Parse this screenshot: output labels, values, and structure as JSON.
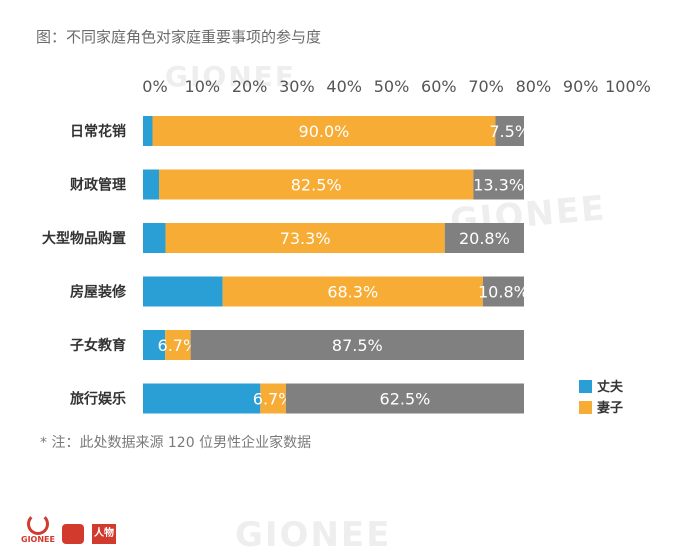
{
  "title": "图：不同家庭角色对家庭重要事项的参与度",
  "note": "* 注：此处数据来源 120 位男性企业家数据",
  "watermark": "GIONEE",
  "footer_logos": [
    "GIONEE",
    "",
    "人物"
  ],
  "chart_data": {
    "type": "bar",
    "orientation": "horizontal",
    "stacked": true,
    "xlim": [
      0,
      100
    ],
    "x_ticks": [
      "0%",
      "10%",
      "20%",
      "30%",
      "40%",
      "50%",
      "60%",
      "70%",
      "80%",
      "90%",
      "100%"
    ],
    "categories": [
      "日常花销",
      "财政管理",
      "大型物品购置",
      "房屋装修",
      "子女教育",
      "旅行娱乐"
    ],
    "series": [
      {
        "name": "丈夫",
        "color": "#2a9fd6",
        "values": [
          2.5,
          4.2,
          5.9,
          20.9,
          5.8,
          30.8
        ],
        "labels": [
          "",
          "",
          "",
          "",
          "",
          ""
        ]
      },
      {
        "name": "妻子",
        "color": "#f6ac35",
        "values": [
          90.0,
          82.5,
          73.3,
          68.3,
          6.7,
          6.7
        ],
        "labels": [
          "90.0%",
          "82.5%",
          "73.3%",
          "68.3%",
          "6.7%",
          "6.7%"
        ]
      },
      {
        "name": "",
        "color": "#808080",
        "values": [
          7.5,
          13.3,
          20.8,
          10.8,
          87.5,
          62.5
        ],
        "labels": [
          "7.5%",
          "13.3%",
          "20.8%",
          "10.8%",
          "87.5%",
          "62.5%"
        ]
      }
    ],
    "legend": {
      "position": "right",
      "entries": [
        0,
        1
      ]
    },
    "grid": false
  }
}
